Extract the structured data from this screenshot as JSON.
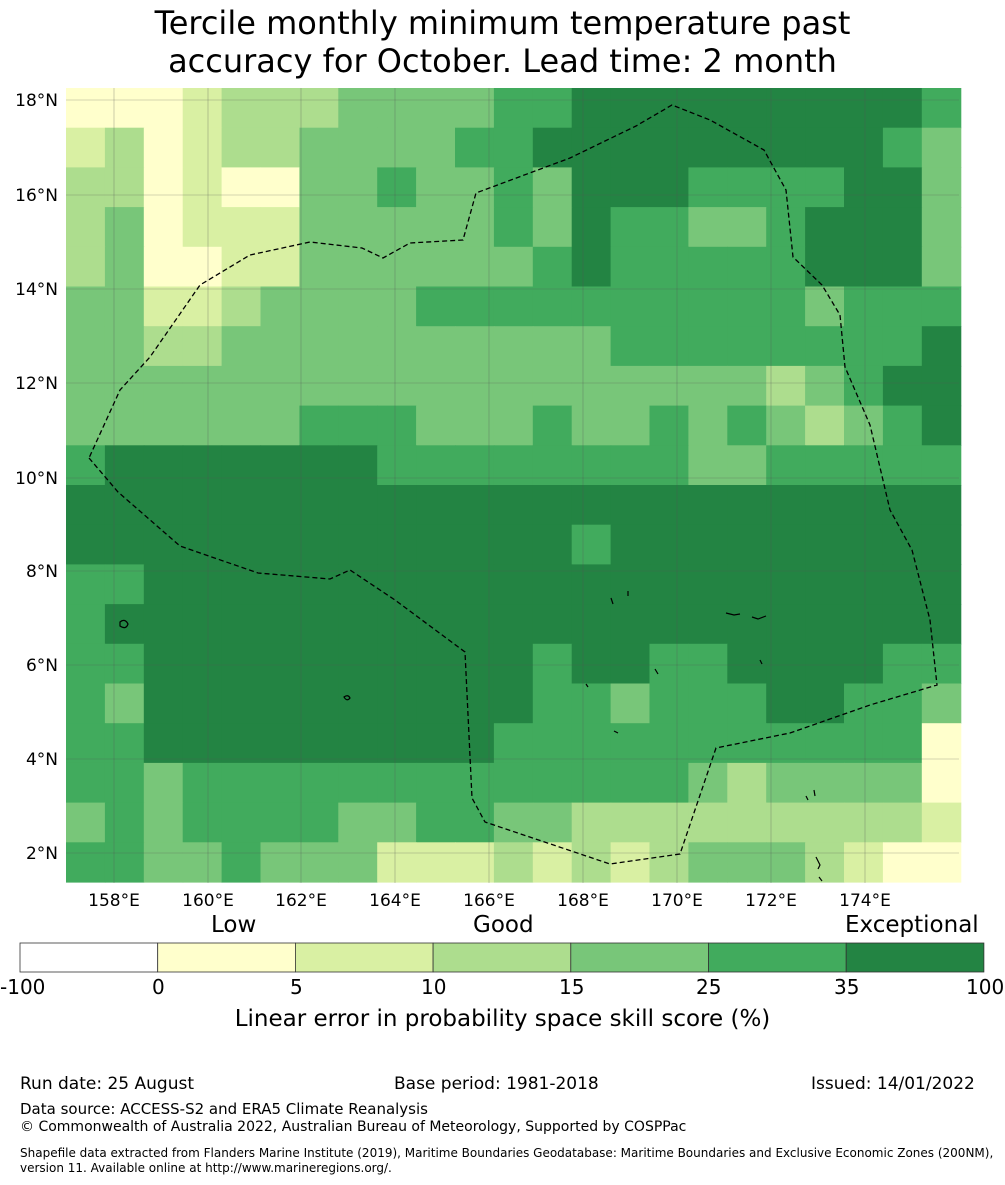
{
  "title_line1": "Tercile monthly minimum temperature past",
  "title_line2": "accuracy for October. Lead time: 2 month",
  "lat_labels": [
    "18°N",
    "16°N",
    "14°N",
    "12°N",
    "10°N",
    "8°N",
    "6°N",
    "4°N",
    "2°N"
  ],
  "lon_labels": [
    "158°E",
    "160°E",
    "162°E",
    "164°E",
    "166°E",
    "168°E",
    "170°E",
    "172°E",
    "174°E"
  ],
  "colorbar": {
    "categories": [
      "Low",
      "Good",
      "Exceptional"
    ],
    "ticks": [
      "-100",
      "0",
      "5",
      "10",
      "15",
      "25",
      "35",
      "100"
    ],
    "colors": [
      "#ffffff",
      "#ffffcc",
      "#d9f0a3",
      "#addd8e",
      "#78c679",
      "#41ab5d",
      "#238443"
    ],
    "label": "Linear error in probability space skill score (%)"
  },
  "footer": {
    "run_date": "Run date: 25 August",
    "base_period": "Base period: 1981-2018",
    "issued": "Issued: 14/01/2022",
    "data_source": "Data source: ACCESS-S2 and ERA5 Climate Reanalysis",
    "copyright": "© Commonwealth of Australia 2022, Australian Bureau of Meteorology, Supported by COSPPac",
    "shapefile": "Shapefile data extracted from Flanders Marine Institute (2019), Maritime Boundaries Geodatabase: Maritime Boundaries and Exclusive Economic Zones (200NM), version 11. Available online at http://www.marineregions.org/."
  }
}
